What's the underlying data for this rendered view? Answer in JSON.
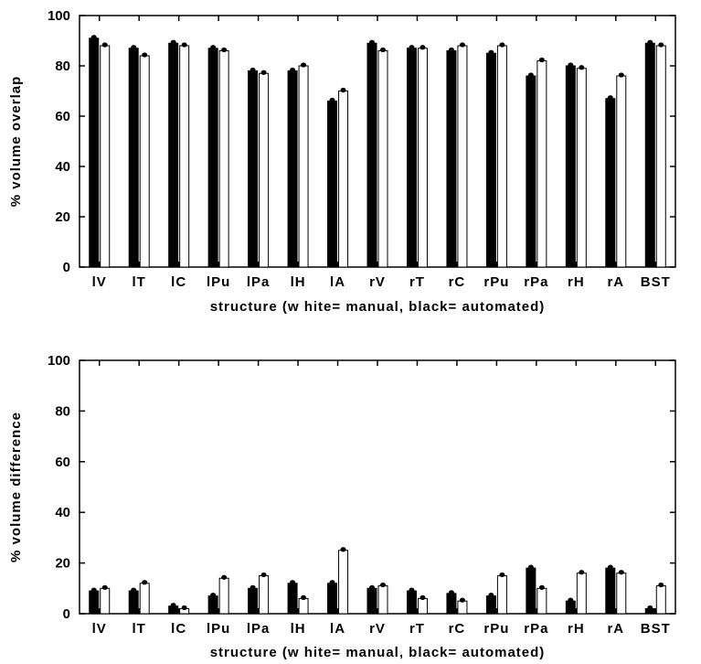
{
  "chart_data": [
    {
      "type": "bar",
      "categories": [
        "lV",
        "lT",
        "lC",
        "lPu",
        "lPa",
        "lH",
        "lA",
        "rV",
        "rT",
        "rC",
        "rPu",
        "rPa",
        "rH",
        "rA",
        "BST"
      ],
      "xlabel": "structure (w hite= manual, black= automated)",
      "ylabel": "% volume overlap",
      "ylim": [
        0,
        100
      ],
      "yticks": [
        0,
        20,
        40,
        60,
        80,
        100
      ],
      "grid": false,
      "series": [
        {
          "fill": "#000000",
          "values": [
            91,
            87,
            89,
            87,
            78,
            78,
            66,
            89,
            87,
            86,
            85,
            76,
            80,
            67,
            89
          ]
        },
        {
          "fill": "#ffffff",
          "values": [
            88,
            84,
            88,
            86,
            77,
            80,
            70,
            86,
            87,
            88,
            88,
            82,
            79,
            76,
            88
          ]
        }
      ]
    },
    {
      "type": "bar",
      "categories": [
        "lV",
        "lT",
        "lC",
        "lPu",
        "lPa",
        "lH",
        "lA",
        "rV",
        "rT",
        "rC",
        "rPu",
        "rPa",
        "rH",
        "rA",
        "BST"
      ],
      "xlabel": "structure (w hite= manual, black= automated)",
      "ylabel": "% volume difference",
      "ylim": [
        0,
        100
      ],
      "yticks": [
        0,
        20,
        40,
        60,
        80,
        100
      ],
      "grid": false,
      "series": [
        {
          "fill": "#000000",
          "values": [
            9,
            9,
            3,
            7,
            10,
            12,
            12,
            10,
            9,
            8,
            7,
            18,
            5,
            18,
            2
          ]
        },
        {
          "fill": "#ffffff",
          "values": [
            10,
            12,
            2,
            14,
            15,
            6,
            25,
            11,
            6,
            5,
            15,
            10,
            16,
            16,
            11
          ]
        }
      ]
    }
  ]
}
